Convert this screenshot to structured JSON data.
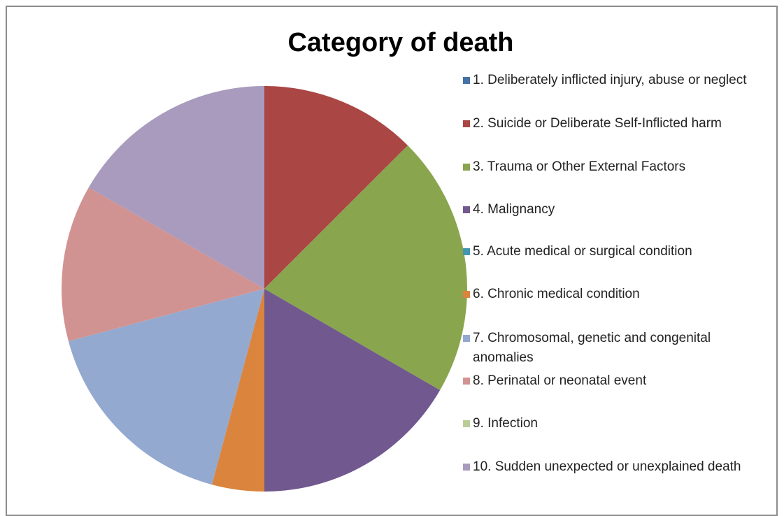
{
  "chart_data": {
    "type": "pie",
    "title": "Category of death",
    "categories": [
      "1. Deliberately inflicted injury, abuse or neglect",
      "2. Suicide or Deliberate Self-Inflicted harm",
      "3. Trauma or Other External Factors",
      "4. Malignancy",
      "5. Acute medical or surgical condition",
      "6. Chronic medical condition",
      "7. Chromosomal, genetic and congenital anomalies",
      "8. Perinatal or neonatal event",
      "9. Infection",
      "10. Sudden unexpected or unexplained death"
    ],
    "values": [
      0,
      3,
      5,
      4,
      0,
      1,
      4,
      3,
      0,
      4
    ],
    "colors": [
      "#4572a7",
      "#aa4643",
      "#89a54e",
      "#71588f",
      "#4198af",
      "#db843d",
      "#93a9cf",
      "#d19392",
      "#b9cd96",
      "#a99bbd"
    ],
    "legend": "right"
  }
}
